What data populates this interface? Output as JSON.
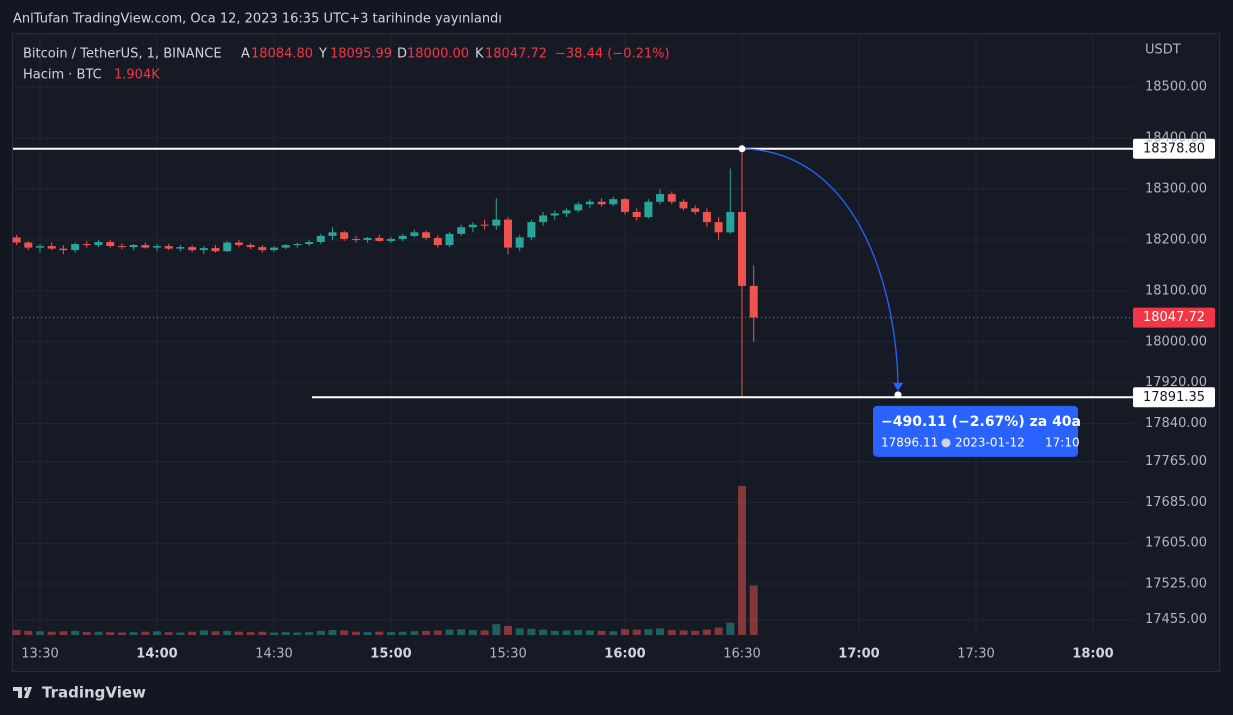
{
  "header": "AnlTufan TradingView.com, Oca 12, 2023 16:35 UTC+3 tarihinde yayınlandı",
  "footer": "TradingView",
  "chart_data": {
    "type": "candlestick",
    "symbol": "Bitcoin / TetherUS, 1, BINANCE",
    "legend": {
      "open_label": "A",
      "open": "18084.80",
      "high_label": "Y",
      "high": "18095.99",
      "low_label": "D",
      "low": "18000.00",
      "close_label": "K",
      "close": "18047.72",
      "change": "−38.44 (−0.21%)"
    },
    "volume_legend": {
      "label": "Hacim · BTC",
      "value": "1.904K"
    },
    "currency": "USDT",
    "x": [
      "13:24",
      "13:27",
      "13:30",
      "13:33",
      "13:36",
      "13:39",
      "13:42",
      "13:45",
      "13:48",
      "13:51",
      "13:54",
      "13:57",
      "14:00",
      "14:03",
      "14:06",
      "14:09",
      "14:12",
      "14:15",
      "14:18",
      "14:21",
      "14:24",
      "14:27",
      "14:30",
      "14:33",
      "14:36",
      "14:39",
      "14:42",
      "14:45",
      "14:48",
      "14:51",
      "14:54",
      "14:57",
      "15:00",
      "15:03",
      "15:06",
      "15:09",
      "15:12",
      "15:15",
      "15:18",
      "15:21",
      "15:24",
      "15:27",
      "15:30",
      "15:33",
      "15:36",
      "15:39",
      "15:42",
      "15:45",
      "15:48",
      "15:51",
      "15:54",
      "15:57",
      "16:00",
      "16:03",
      "16:06",
      "16:09",
      "16:12",
      "16:15",
      "16:18",
      "16:21",
      "16:24",
      "16:27",
      "16:30",
      "16:33"
    ],
    "open": [
      18205,
      18195,
      18185,
      18188,
      18183,
      18180,
      18192,
      18190,
      18196,
      18188,
      18186,
      18190,
      18185,
      18188,
      18183,
      18186,
      18180,
      18184,
      18178,
      18195,
      18190,
      18186,
      18180,
      18185,
      18190,
      18192,
      18196,
      18208,
      18215,
      18202,
      18200,
      18204,
      18198,
      18202,
      18208,
      18215,
      18204,
      18190,
      18212,
      18225,
      18230,
      18228,
      18240,
      18185,
      18205,
      18235,
      18248,
      18252,
      18258,
      18270,
      18275,
      18270,
      18280,
      18255,
      18245,
      18275,
      18290,
      18275,
      18262,
      18255,
      18235,
      18215,
      18255,
      18110
    ],
    "high": [
      18210,
      18198,
      18192,
      18195,
      18190,
      18195,
      18198,
      18200,
      18200,
      18193,
      18192,
      18195,
      18192,
      18193,
      18190,
      18190,
      18188,
      18190,
      18198,
      18200,
      18194,
      18190,
      18188,
      18192,
      18195,
      18200,
      18212,
      18225,
      18218,
      18208,
      18206,
      18210,
      18206,
      18212,
      18220,
      18218,
      18210,
      18215,
      18230,
      18235,
      18240,
      18282,
      18245,
      18210,
      18240,
      18255,
      18258,
      18262,
      18275,
      18280,
      18282,
      18285,
      18282,
      18262,
      18280,
      18300,
      18295,
      18280,
      18268,
      18262,
      18245,
      18340,
      18378.8,
      18150
    ],
    "low": [
      18190,
      18180,
      18175,
      18180,
      18172,
      18175,
      18185,
      18186,
      18185,
      18182,
      18180,
      18183,
      18178,
      18180,
      18178,
      18176,
      18172,
      18175,
      18176,
      18186,
      18182,
      18175,
      18176,
      18182,
      18185,
      18188,
      18192,
      18200,
      18198,
      18195,
      18194,
      18196,
      18194,
      18198,
      18205,
      18200,
      18185,
      18186,
      18208,
      18215,
      18220,
      18220,
      18172,
      18178,
      18200,
      18228,
      18240,
      18245,
      18254,
      18262,
      18265,
      18266,
      18250,
      18238,
      18242,
      18270,
      18270,
      18258,
      18250,
      18225,
      18200,
      18212,
      17891.35,
      18000
    ],
    "close": [
      18195,
      18185,
      18188,
      18183,
      18180,
      18192,
      18190,
      18196,
      18188,
      18186,
      18190,
      18185,
      18188,
      18183,
      18186,
      18180,
      18184,
      18178,
      18195,
      18190,
      18186,
      18180,
      18185,
      18190,
      18192,
      18196,
      18208,
      18215,
      18202,
      18200,
      18204,
      18198,
      18202,
      18208,
      18215,
      18204,
      18190,
      18212,
      18225,
      18230,
      18228,
      18240,
      18185,
      18205,
      18235,
      18248,
      18252,
      18258,
      18270,
      18275,
      18270,
      18280,
      18255,
      18245,
      18275,
      18290,
      18275,
      18262,
      18255,
      18235,
      18215,
      18255,
      18110,
      18047.72
    ],
    "volume": [
      60,
      50,
      45,
      40,
      45,
      50,
      35,
      40,
      35,
      30,
      35,
      40,
      45,
      35,
      30,
      40,
      55,
      45,
      50,
      40,
      35,
      40,
      30,
      35,
      30,
      35,
      50,
      60,
      55,
      40,
      35,
      40,
      35,
      40,
      45,
      50,
      55,
      65,
      70,
      60,
      55,
      130,
      110,
      80,
      75,
      65,
      50,
      55,
      60,
      55,
      50,
      45,
      70,
      65,
      70,
      80,
      60,
      55,
      50,
      65,
      90,
      150,
      1800,
      600
    ],
    "up_color": "#26a69a",
    "down_color": "#ef5350",
    "ylim": [
      17425,
      18606
    ],
    "yticks": [
      {
        "value": 18500,
        "label": "18500.00"
      },
      {
        "value": 18400,
        "label": "18400.00"
      },
      {
        "value": 18300,
        "label": "18300.00"
      },
      {
        "value": 18200,
        "label": "18200.00"
      },
      {
        "value": 18100,
        "label": "18100.00"
      },
      {
        "value": 18000,
        "label": "18000.00"
      },
      {
        "value": 17920,
        "label": "17920.00"
      },
      {
        "value": 17840,
        "label": "17840.00"
      },
      {
        "value": 17765,
        "label": "17765.00"
      },
      {
        "value": 17685,
        "label": "17685.00"
      },
      {
        "value": 17605,
        "label": "17605.00"
      },
      {
        "value": 17525,
        "label": "17525.00"
      },
      {
        "value": 17455,
        "label": "17455.00"
      }
    ],
    "xticks": [
      "13:30",
      "14:00",
      "14:30",
      "15:00",
      "15:30",
      "16:00",
      "16:30",
      "17:00",
      "17:30",
      "18:00"
    ],
    "grid": true,
    "horizontal_lines": [
      {
        "value": 18378.8,
        "label": "18378.80"
      },
      {
        "value": 17891.35,
        "label": "17891.35"
      }
    ],
    "projection": {
      "change": "−490.11 (−2.67%) za 40a",
      "target": 17896.11,
      "date": "2023-01-12",
      "time": "17:10",
      "color": "#2962ff"
    }
  }
}
